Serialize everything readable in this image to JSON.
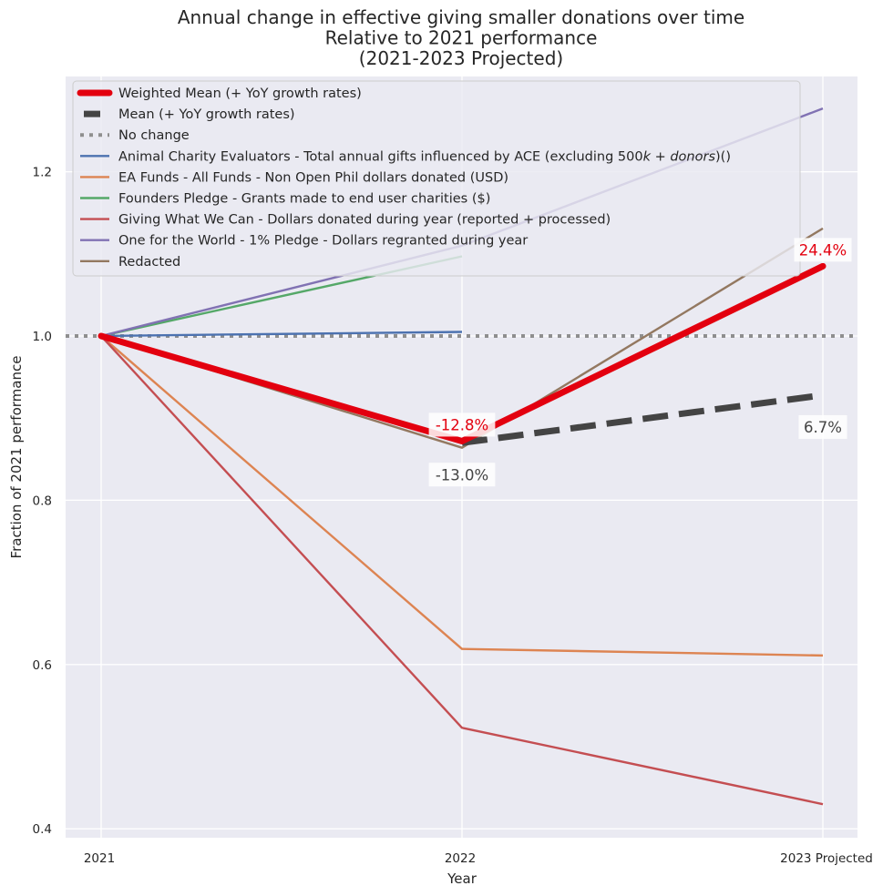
{
  "chart_data": {
    "type": "line",
    "title": [
      "Annual change in effective giving smaller donations over time",
      "Relative to 2021 performance",
      "(2021-2023 Projected)"
    ],
    "xlabel": "Year",
    "ylabel": "Fraction of 2021 performance",
    "categories": [
      "2021",
      "2022",
      "2023 Projected"
    ],
    "ylim": [
      0.39,
      1.32
    ],
    "yticks": [
      0.4,
      0.6,
      0.8,
      1.0,
      1.2
    ],
    "ytick_labels": [
      "0.4",
      "0.6",
      "0.8",
      "1.0",
      "1.2"
    ],
    "grid": true,
    "legend_position": "top-left",
    "reference_line": {
      "name": "No change",
      "value": 1.0,
      "color": "#8f8f8f",
      "style": "dotted"
    },
    "series": [
      {
        "name": "Animal Charity Evaluators - Total annual gifts influenced by ACE (excluding 500k+donors)()",
        "legend_text": [
          "Animal Charity Evaluators - Total annual gifts influenced by ACE (excluding 500",
          "k",
          " + ",
          "donors",
          ")()"
        ],
        "color": "#4c72b0",
        "values": [
          1.0,
          1.005,
          null
        ],
        "style": "solid"
      },
      {
        "name": "EA Funds - All Funds - Non Open Phil dollars donated (USD)",
        "color": "#dd8452",
        "values": [
          1.0,
          0.619,
          0.611
        ],
        "style": "solid"
      },
      {
        "name": "Founders Pledge - Grants made to end user charities ($)",
        "color": "#55a868",
        "values": [
          1.0,
          1.097,
          null
        ],
        "style": "solid"
      },
      {
        "name": "Giving What We Can - Dollars donated during year (reported + processed)",
        "color": "#c44e52",
        "values": [
          1.0,
          0.523,
          0.43
        ],
        "style": "solid"
      },
      {
        "name": "One for the World - 1% Pledge - Dollars regranted during year",
        "color": "#8172b3",
        "values": [
          1.0,
          1.11,
          1.277
        ],
        "style": "solid"
      },
      {
        "name": "Redacted",
        "color": "#937860",
        "values": [
          1.0,
          0.864,
          1.131
        ],
        "style": "solid"
      }
    ],
    "aggregates": [
      {
        "name": "Weighted Mean (+ YoY growth rates)",
        "color": "#e3000f",
        "values": [
          1.0,
          0.872,
          1.085
        ],
        "style": "thick"
      },
      {
        "name": "Mean (+ YoY growth rates)",
        "color": "#444444",
        "values": [
          null,
          0.87,
          0.928
        ],
        "style": "dashed"
      }
    ],
    "annotations": [
      {
        "text": "-12.8%",
        "series": "Weighted Mean (+ YoY growth rates)",
        "category": "2022",
        "color": "#e3000f",
        "position": "above"
      },
      {
        "text": "24.4%",
        "series": "Weighted Mean (+ YoY growth rates)",
        "category": "2023 Projected",
        "color": "#e3000f",
        "position": "above"
      },
      {
        "text": "-13.0%",
        "series": "Mean (+ YoY growth rates)",
        "category": "2022",
        "color": "#444444",
        "position": "below"
      },
      {
        "text": "6.7%",
        "series": "Mean (+ YoY growth rates)",
        "category": "2023 Projected",
        "color": "#444444",
        "position": "below"
      }
    ]
  }
}
